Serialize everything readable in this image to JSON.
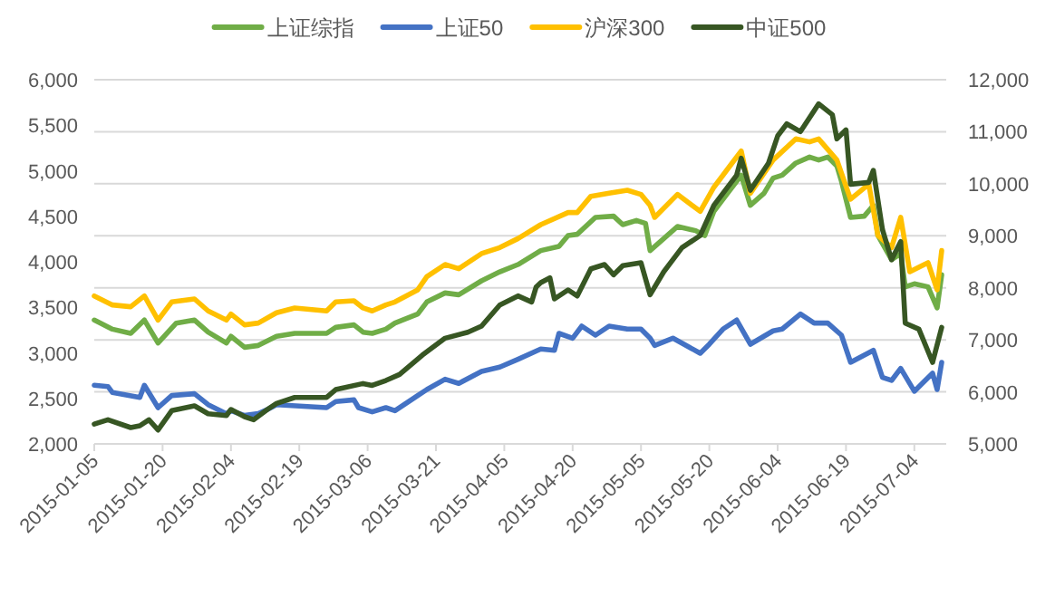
{
  "chart_data": {
    "type": "line",
    "legend": "top",
    "grid": "y",
    "xlim": [
      "2015-01-05",
      "2015-07-11"
    ],
    "xticks": [
      "2015-01-05",
      "2015-01-20",
      "2015-02-04",
      "2015-02-19",
      "2015-03-06",
      "2015-03-21",
      "2015-04-05",
      "2015-04-20",
      "2015-05-05",
      "2015-05-20",
      "2015-06-04",
      "2015-06-19",
      "2015-07-04"
    ],
    "ylim": [
      2000,
      6000
    ],
    "yticks": [
      {
        "value": 2000,
        "label": "2,000"
      },
      {
        "value": 2500,
        "label": "2,500"
      },
      {
        "value": 3000,
        "label": "3,000"
      },
      {
        "value": 3500,
        "label": "3,500"
      },
      {
        "value": 4000,
        "label": "4,000"
      },
      {
        "value": 4500,
        "label": "4,500"
      },
      {
        "value": 5000,
        "label": "5,000"
      },
      {
        "value": 5500,
        "label": "5,500"
      },
      {
        "value": 6000,
        "label": "6,000"
      }
    ],
    "y2lim": [
      5000,
      12000
    ],
    "y2ticks": [
      {
        "value": 5000,
        "label": "5,000"
      },
      {
        "value": 6000,
        "label": "6,000"
      },
      {
        "value": 7000,
        "label": "7,000"
      },
      {
        "value": 8000,
        "label": "8,000"
      },
      {
        "value": 9000,
        "label": "9,000"
      },
      {
        "value": 10000,
        "label": "10,000"
      },
      {
        "value": 11000,
        "label": "11,000"
      },
      {
        "value": 12000,
        "label": "12,000"
      }
    ],
    "series": [
      {
        "name": "上证综指",
        "color": "#70ad47",
        "x": [
          "2015-01-05",
          "2015-01-09",
          "2015-01-13",
          "2015-01-16",
          "2015-01-19",
          "2015-01-23",
          "2015-01-27",
          "2015-01-30",
          "2015-02-03",
          "2015-02-04",
          "2015-02-07",
          "2015-02-10",
          "2015-02-14",
          "2015-02-18",
          "2015-02-25",
          "2015-02-27",
          "2015-03-03",
          "2015-03-05",
          "2015-03-07",
          "2015-03-10",
          "2015-03-12",
          "2015-03-17",
          "2015-03-19",
          "2015-03-23",
          "2015-03-26",
          "2015-03-31",
          "2015-04-04",
          "2015-04-08",
          "2015-04-13",
          "2015-04-17",
          "2015-04-19",
          "2015-04-21",
          "2015-04-25",
          "2015-04-29",
          "2015-05-01",
          "2015-05-04",
          "2015-05-06",
          "2015-05-07",
          "2015-05-10",
          "2015-05-13",
          "2015-05-17",
          "2015-05-19",
          "2015-05-21",
          "2015-05-24",
          "2015-05-27",
          "2015-05-29",
          "2015-06-01",
          "2015-06-03",
          "2015-06-05",
          "2015-06-08",
          "2015-06-11",
          "2015-06-13",
          "2015-06-15",
          "2015-06-17",
          "2015-06-18",
          "2015-06-20",
          "2015-06-23",
          "2015-06-25",
          "2015-06-26",
          "2015-06-29",
          "2015-07-01",
          "2015-07-02",
          "2015-07-04",
          "2015-07-07",
          "2015-07-09",
          "2015-07-10"
        ],
        "values": [
          3360,
          3260,
          3214,
          3360,
          3108,
          3327,
          3360,
          3227,
          3108,
          3181,
          3061,
          3081,
          3181,
          3214,
          3214,
          3280,
          3307,
          3227,
          3214,
          3260,
          3327,
          3426,
          3559,
          3658,
          3638,
          3791,
          3890,
          3970,
          4123,
          4169,
          4289,
          4302,
          4488,
          4501,
          4408,
          4454,
          4421,
          4123,
          4255,
          4388,
          4342,
          4289,
          4554,
          4753,
          4950,
          4620,
          4753,
          4919,
          4952,
          5085,
          5151,
          5118,
          5151,
          5052,
          4886,
          4488,
          4501,
          4620,
          4289,
          4023,
          4090,
          3725,
          3758,
          3725,
          3493,
          3857
        ]
      },
      {
        "name": "上证50",
        "color": "#4472c4",
        "x": [
          "2015-01-05",
          "2015-01-08",
          "2015-01-09",
          "2015-01-15",
          "2015-01-16",
          "2015-01-19",
          "2015-01-22",
          "2015-01-27",
          "2015-01-30",
          "2015-02-03",
          "2015-02-04",
          "2015-02-07",
          "2015-02-10",
          "2015-02-12",
          "2015-02-14",
          "2015-02-25",
          "2015-02-27",
          "2015-03-03",
          "2015-03-04",
          "2015-03-07",
          "2015-03-10",
          "2015-03-12",
          "2015-03-17",
          "2015-03-19",
          "2015-03-23",
          "2015-03-26",
          "2015-03-31",
          "2015-04-04",
          "2015-04-08",
          "2015-04-13",
          "2015-04-16",
          "2015-04-17",
          "2015-04-20",
          "2015-04-22",
          "2015-04-25",
          "2015-04-28",
          "2015-05-02",
          "2015-05-05",
          "2015-05-07",
          "2015-05-08",
          "2015-05-12",
          "2015-05-18",
          "2015-05-20",
          "2015-05-23",
          "2015-05-26",
          "2015-05-29",
          "2015-06-03",
          "2015-06-05",
          "2015-06-09",
          "2015-06-12",
          "2015-06-15",
          "2015-06-18",
          "2015-06-20",
          "2015-06-25",
          "2015-06-27",
          "2015-06-29",
          "2015-07-01",
          "2015-07-04",
          "2015-07-08",
          "2015-07-09",
          "2015-07-10"
        ],
        "values": [
          2644,
          2630,
          2564,
          2511,
          2644,
          2398,
          2531,
          2551,
          2431,
          2332,
          2365,
          2312,
          2332,
          2378,
          2431,
          2398,
          2465,
          2484,
          2398,
          2352,
          2398,
          2365,
          2531,
          2597,
          2710,
          2664,
          2796,
          2843,
          2929,
          3042,
          3028,
          3214,
          3161,
          3294,
          3194,
          3294,
          3261,
          3261,
          3161,
          3081,
          3161,
          2995,
          3095,
          3261,
          3360,
          3095,
          3241,
          3261,
          3426,
          3327,
          3327,
          3194,
          2896,
          3028,
          2730,
          2697,
          2829,
          2578,
          2777,
          2597,
          2896
        ]
      },
      {
        "name": "沪深300",
        "color": "#ffc000",
        "x": [
          "2015-01-05",
          "2015-01-09",
          "2015-01-13",
          "2015-01-16",
          "2015-01-19",
          "2015-01-22",
          "2015-01-27",
          "2015-01-30",
          "2015-02-03",
          "2015-02-04",
          "2015-02-07",
          "2015-02-10",
          "2015-02-14",
          "2015-02-18",
          "2015-02-25",
          "2015-02-27",
          "2015-03-03",
          "2015-03-05",
          "2015-03-07",
          "2015-03-10",
          "2015-03-12",
          "2015-03-17",
          "2015-03-19",
          "2015-03-23",
          "2015-03-26",
          "2015-03-31",
          "2015-04-04",
          "2015-04-08",
          "2015-04-13",
          "2015-04-19",
          "2015-04-21",
          "2015-04-24",
          "2015-04-28",
          "2015-05-02",
          "2015-05-05",
          "2015-05-07",
          "2015-05-08",
          "2015-05-13",
          "2015-05-18",
          "2015-05-21",
          "2015-05-25",
          "2015-05-27",
          "2015-05-29",
          "2015-06-03",
          "2015-06-08",
          "2015-06-11",
          "2015-06-13",
          "2015-06-17",
          "2015-06-20",
          "2015-06-24",
          "2015-06-26",
          "2015-06-29",
          "2015-07-01",
          "2015-07-03",
          "2015-07-07",
          "2015-07-09",
          "2015-07-10"
        ],
        "values": [
          3625,
          3526,
          3506,
          3625,
          3360,
          3559,
          3592,
          3460,
          3360,
          3426,
          3307,
          3327,
          3440,
          3493,
          3460,
          3559,
          3572,
          3493,
          3460,
          3526,
          3559,
          3692,
          3837,
          3970,
          3924,
          4090,
          4156,
          4255,
          4408,
          4541,
          4541,
          4720,
          4753,
          4786,
          4740,
          4620,
          4488,
          4740,
          4554,
          4819,
          5085,
          5217,
          4753,
          5118,
          5350,
          5317,
          5350,
          5118,
          4687,
          4853,
          4289,
          4156,
          4488,
          3891,
          3990,
          3692,
          4123
        ]
      },
      {
        "name": "中证500",
        "color": "#375623",
        "axis": "y2",
        "x": [
          "2015-01-05",
          "2015-01-08",
          "2015-01-13",
          "2015-01-15",
          "2015-01-17",
          "2015-01-19",
          "2015-01-22",
          "2015-01-27",
          "2015-01-30",
          "2015-02-03",
          "2015-02-04",
          "2015-02-07",
          "2015-02-09",
          "2015-02-12",
          "2015-02-14",
          "2015-02-18",
          "2015-02-25",
          "2015-02-27",
          "2015-03-05",
          "2015-03-07",
          "2015-03-10",
          "2015-03-13",
          "2015-03-18",
          "2015-03-23",
          "2015-03-28",
          "2015-03-31",
          "2015-04-04",
          "2015-04-08",
          "2015-04-11",
          "2015-04-12",
          "2015-04-13",
          "2015-04-15",
          "2015-04-16",
          "2015-04-19",
          "2015-04-21",
          "2015-04-24",
          "2015-04-27",
          "2015-04-29",
          "2015-05-01",
          "2015-05-05",
          "2015-05-07",
          "2015-05-10",
          "2015-05-14",
          "2015-05-18",
          "2015-05-21",
          "2015-05-26",
          "2015-05-27",
          "2015-05-29",
          "2015-06-02",
          "2015-06-04",
          "2015-06-06",
          "2015-06-09",
          "2015-06-13",
          "2015-06-16",
          "2015-06-17",
          "2015-06-19",
          "2015-06-20",
          "2015-06-24",
          "2015-06-25",
          "2015-06-27",
          "2015-06-29",
          "2015-07-01",
          "2015-07-02",
          "2015-07-05",
          "2015-07-08",
          "2015-07-10"
        ],
        "values": [
          5382,
          5464,
          5313,
          5348,
          5464,
          5266,
          5638,
          5731,
          5580,
          5545,
          5661,
          5522,
          5464,
          5661,
          5777,
          5893,
          5893,
          6044,
          6160,
          6125,
          6218,
          6334,
          6706,
          7031,
          7147,
          7263,
          7669,
          7844,
          7728,
          8018,
          8099,
          8192,
          7786,
          7960,
          7844,
          8366,
          8447,
          8250,
          8424,
          8482,
          7867,
          8308,
          8772,
          9005,
          9585,
          10166,
          10491,
          9875,
          10398,
          10920,
          11152,
          11002,
          11536,
          11327,
          10862,
          11036,
          9991,
          10026,
          10258,
          9121,
          8540,
          8889,
          7321,
          7205,
          6567,
          7240
        ]
      }
    ]
  }
}
